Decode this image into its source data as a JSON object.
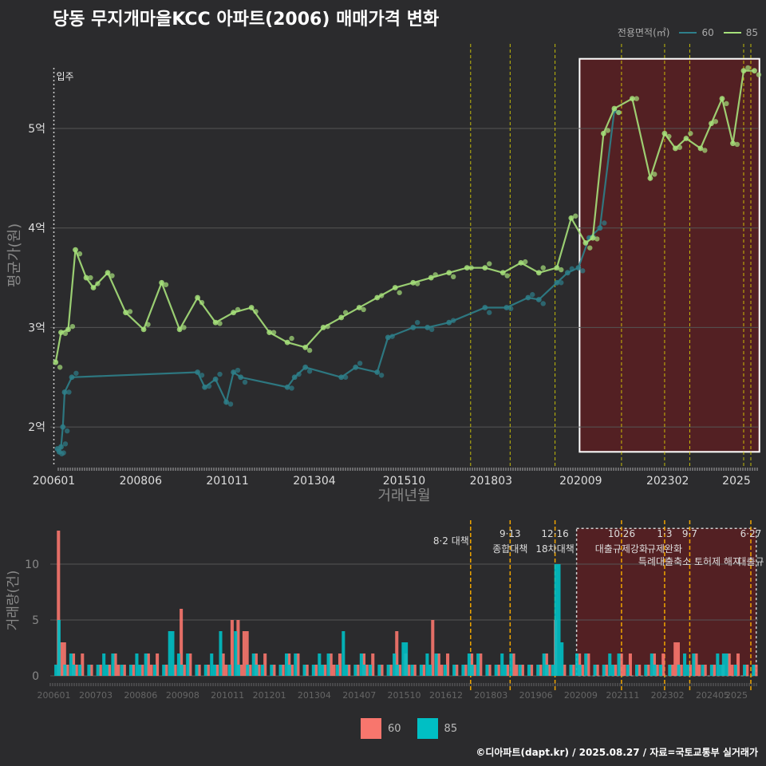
{
  "title": "당동 무지개마을KCC 아파트(2006) 매매가격 변화",
  "legend": {
    "title": "전용면적(㎡)",
    "items": [
      {
        "label": "60",
        "color": "#2e7f8a"
      },
      {
        "label": "85",
        "color": "#a6e07a"
      }
    ]
  },
  "bar_legend": [
    {
      "label": "60",
      "color": "#f8766d"
    },
    {
      "label": "85",
      "color": "#00bfc4"
    }
  ],
  "caption": "©디아파트(dapt.kr) / 2025.08.27 / 자료=국토교통부 실거래가",
  "chart_data": [
    {
      "type": "line",
      "id": "price",
      "title": "",
      "xlabel": "거래년월",
      "ylabel": "평균가(원)",
      "x_ticks": [
        "200601",
        "200806",
        "201011",
        "201304",
        "201510",
        "201803",
        "202009",
        "202302",
        "2025"
      ],
      "y_ticks": [
        "2억",
        "3억",
        "4억",
        "5억"
      ],
      "ylim": [
        1.6,
        5.85
      ],
      "xlim": [
        2005.9,
        2025.6
      ],
      "move_in_label": "입주",
      "highlight_range": [
        2020.5,
        2025.55
      ],
      "series": [
        {
          "name": "60",
          "x": [
            2006.1,
            2006.15,
            2006.2,
            2006.25,
            2006.3,
            2006.5,
            2010.0,
            2010.2,
            2010.5,
            2010.8,
            2011.0,
            2011.2,
            2012.5,
            2012.7,
            2013.0,
            2014.0,
            2014.4,
            2015.0,
            2015.3,
            2016.0,
            2016.4,
            2017.0,
            2018.0,
            2018.6,
            2019.2,
            2019.5,
            2020.0,
            2020.3,
            2020.6,
            2020.9,
            2021.2,
            2021.6
          ],
          "y": [
            1.78,
            1.75,
            1.8,
            2.0,
            2.35,
            2.5,
            2.55,
            2.4,
            2.48,
            2.25,
            2.55,
            2.5,
            2.4,
            2.5,
            2.6,
            2.5,
            2.6,
            2.55,
            2.9,
            3.0,
            3.0,
            3.05,
            3.2,
            3.2,
            3.3,
            3.28,
            3.45,
            3.55,
            3.6,
            3.9,
            4.0,
            5.18
          ]
        },
        {
          "name": "85",
          "x": [
            2006.05,
            2006.2,
            2006.4,
            2006.6,
            2006.9,
            2007.1,
            2007.5,
            2008.0,
            2008.5,
            2009.0,
            2009.5,
            2010.0,
            2010.5,
            2011.0,
            2011.5,
            2012.0,
            2012.5,
            2013.0,
            2013.5,
            2014.0,
            2014.5,
            2015.0,
            2015.5,
            2016.0,
            2016.5,
            2017.0,
            2017.5,
            2018.0,
            2018.5,
            2019.0,
            2019.5,
            2020.0,
            2020.4,
            2020.8,
            2021.0,
            2021.3,
            2021.6,
            2022.1,
            2022.6,
            2023.0,
            2023.3,
            2023.6,
            2024.0,
            2024.3,
            2024.6,
            2024.9,
            2025.2,
            2025.5
          ],
          "y": [
            2.65,
            2.95,
            2.98,
            3.78,
            3.5,
            3.4,
            3.55,
            3.15,
            2.98,
            3.45,
            2.98,
            3.3,
            3.05,
            3.15,
            3.2,
            2.95,
            2.85,
            2.8,
            3.0,
            3.1,
            3.2,
            3.3,
            3.4,
            3.45,
            3.5,
            3.55,
            3.6,
            3.6,
            3.55,
            3.65,
            3.55,
            3.6,
            4.1,
            3.85,
            3.9,
            4.95,
            5.2,
            5.3,
            4.5,
            4.95,
            4.8,
            4.9,
            4.8,
            5.05,
            5.3,
            4.85,
            5.58,
            5.58
          ]
        }
      ]
    },
    {
      "type": "bar",
      "id": "volume",
      "xlabel": "",
      "ylabel": "거래량(건)",
      "ylim": [
        0,
        13.5
      ],
      "y_ticks": [
        "0",
        "5",
        "10"
      ],
      "x_ticks": [
        "200601",
        "200703",
        "200806",
        "200908",
        "201011",
        "201201",
        "201304",
        "201407",
        "201510",
        "201612",
        "201803",
        "201906",
        "202009",
        "202111",
        "202302",
        "202405",
        "2025"
      ],
      "policy_events": [
        {
          "label": "8·2 대책",
          "x": 2017.6
        },
        {
          "label": "9·13",
          "sub": "종합대책",
          "x": 2018.7
        },
        {
          "label": "12·16",
          "sub": "18차대책",
          "x": 2019.95
        },
        {
          "label": "10·26",
          "sub": "대출규제강화",
          "x": 2021.8
        },
        {
          "label": "1·3",
          "sub": "규제완화",
          "x": 2023.0
        },
        {
          "label": "9·7",
          "sub": "특례대출축소 토허제 해지",
          "x": 2023.7
        },
        {
          "label": "6·27",
          "sub": "대출규",
          "x": 2025.4
        }
      ],
      "series": [
        {
          "name": "60",
          "peaks": [
            [
              2006.1,
              13
            ],
            [
              2006.2,
              3
            ],
            [
              2006.5,
              2
            ],
            [
              2009.5,
              6
            ],
            [
              2010.9,
              5
            ],
            [
              2011.1,
              5
            ],
            [
              2011.3,
              4
            ],
            [
              2015.5,
              4
            ],
            [
              2016.5,
              5
            ],
            [
              2019.9,
              5
            ],
            [
              2023.3,
              3
            ]
          ]
        },
        {
          "name": "85",
          "peaks": [
            [
              2006.1,
              5
            ],
            [
              2009.2,
              4
            ],
            [
              2010.6,
              4
            ],
            [
              2011.0,
              4
            ],
            [
              2014.0,
              4
            ],
            [
              2015.7,
              3
            ],
            [
              2019.95,
              10
            ],
            [
              2020.1,
              3
            ],
            [
              2024.6,
              2
            ]
          ]
        }
      ]
    }
  ]
}
